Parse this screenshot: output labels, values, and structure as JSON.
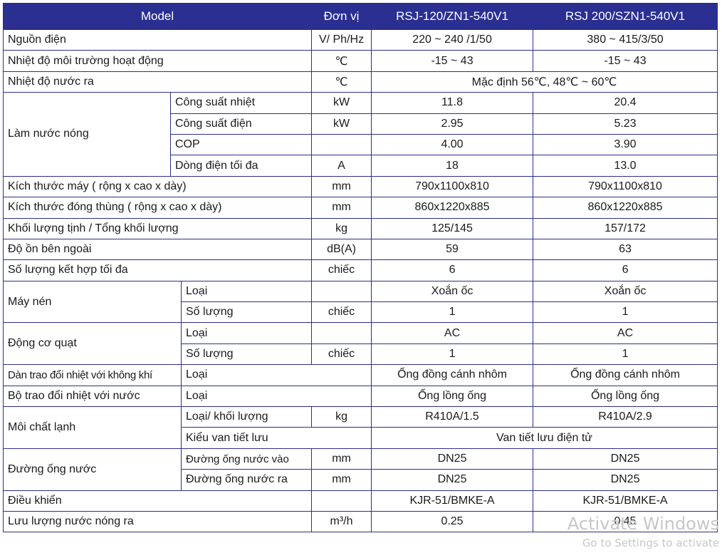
{
  "header": {
    "model": "Model",
    "unit": "Đơn vị",
    "model1": "RSJ-120/ZN1-540V1",
    "model2": "RSJ 200/SZN1-540V1"
  },
  "rows": {
    "nguon_dien": {
      "label": "Nguồn điện",
      "unit": "V/ Ph/Hz",
      "v1": "220 ~ 240 /1/50",
      "v2": "380 ~ 415/3/50"
    },
    "nhiet_do_moi_truong": {
      "label": "Nhiệt độ môi trường hoạt động",
      "unit": "℃",
      "v1": "-15 ~ 43",
      "v2": "-15 ~ 43"
    },
    "nhiet_do_nuoc_ra": {
      "label": "Nhiệt độ nước ra",
      "unit": "℃",
      "v": "Mặc định 56℃, 48℃ ~ 60℃"
    },
    "lam_nuoc_nong": {
      "label": "Làm nước nóng",
      "cong_suat_nhiet": {
        "label": "Công suất nhiệt",
        "unit": "kW",
        "v1": "11.8",
        "v2": "20.4"
      },
      "cong_suat_dien": {
        "label": "Công suất điện",
        "unit": "kW",
        "v1": "2.95",
        "v2": "5.23"
      },
      "cop": {
        "label": "COP",
        "unit": "",
        "v1": "4.00",
        "v2": "3.90"
      },
      "dong_dien": {
        "label": "Dòng điện tối đa",
        "unit": "A",
        "v1": "18",
        "v2": "13.0"
      }
    },
    "kich_thuoc_may": {
      "label": "Kích thước máy ( rộng x cao x dày)",
      "unit": "mm",
      "v1": "790x1100x810",
      "v2": "790x1100x810"
    },
    "kich_thuoc_dong_thung": {
      "label": "Kích thước đóng thùng ( rộng x cao x dày)",
      "unit": "mm",
      "v1": "860x1220x885",
      "v2": "860x1220x885"
    },
    "khoi_luong": {
      "label": "Khối lượng tịnh / Tổng khối lượng",
      "unit": "kg",
      "v1": "125/145",
      "v2": "157/172"
    },
    "do_on": {
      "label": "Độ ồn bên ngoài",
      "unit": "dB(A)",
      "v1": "59",
      "v2": "63"
    },
    "so_luong_ket_hop": {
      "label": "Số lượng kết hợp tối đa",
      "unit": "chiếc",
      "v1": "6",
      "v2": "6"
    },
    "may_nen": {
      "label": "Máy nén",
      "loai": {
        "label": "Loại",
        "unit": "",
        "v1": "Xoắn ốc",
        "v2": "Xoắn ốc"
      },
      "so_luong": {
        "label": "Số lượng",
        "unit": "chiếc",
        "v1": "1",
        "v2": "1"
      }
    },
    "dong_co_quat": {
      "label": "Động cơ quạt",
      "loai": {
        "label": "Loại",
        "unit": "",
        "v1": "AC",
        "v2": "AC"
      },
      "so_luong": {
        "label": "Số lượng",
        "unit": "chiếc",
        "v1": "1",
        "v2": "1"
      }
    },
    "dan_trao_doi_khi": {
      "label": "Dàn trao đổi nhiệt với không khí",
      "sub": "Loại",
      "v1": "Ống đồng cánh nhôm",
      "v2": "Ống đồng cánh nhôm"
    },
    "bo_trao_doi_nuoc": {
      "label": "Bộ trao đổi nhiệt với nước",
      "sub": "Loại",
      "v1": "Ống lồng ống",
      "v2": "Ống lồng ống"
    },
    "moi_chat_lanh": {
      "label": "Môi chất lạnh",
      "loai_khoi_luong": {
        "label": "Loại/ khối lượng",
        "unit": "kg",
        "v1": "R410A/1.5",
        "v2": "R410A/2.9"
      },
      "kieu_van": {
        "label": "Kiểu van tiết lưu",
        "v": "Van tiết lưu điện tử"
      }
    },
    "duong_ong_nuoc": {
      "label": "Đường ống nước",
      "vao": {
        "label": "Đường ống nước vào",
        "unit": "mm",
        "v1": "DN25",
        "v2": "DN25"
      },
      "ra": {
        "label": "Đường ống nước ra",
        "unit": "mm",
        "v1": "DN25",
        "v2": "DN25"
      }
    },
    "dieu_khien": {
      "label": "Điều khiển",
      "unit": "",
      "v1": "KJR-51/BMKE-A",
      "v2": "KJR-51/BMKE-A"
    },
    "luu_luong": {
      "label": "Lưu lượng nước nóng ra",
      "unit": "m³/h",
      "v1": "0.25",
      "v2": "0.45"
    }
  },
  "watermark": {
    "line1": "Activate Windows",
    "line2": "Go to Settings to activate"
  }
}
